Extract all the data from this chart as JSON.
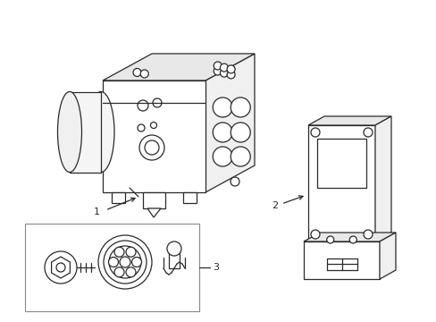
{
  "background_color": "#ffffff",
  "line_color": "#2a2a2a",
  "line_width": 0.9,
  "label_color": "#000000",
  "labels": [
    "1",
    "2",
    "3"
  ],
  "figsize": [
    4.89,
    3.6
  ],
  "dpi": 100
}
